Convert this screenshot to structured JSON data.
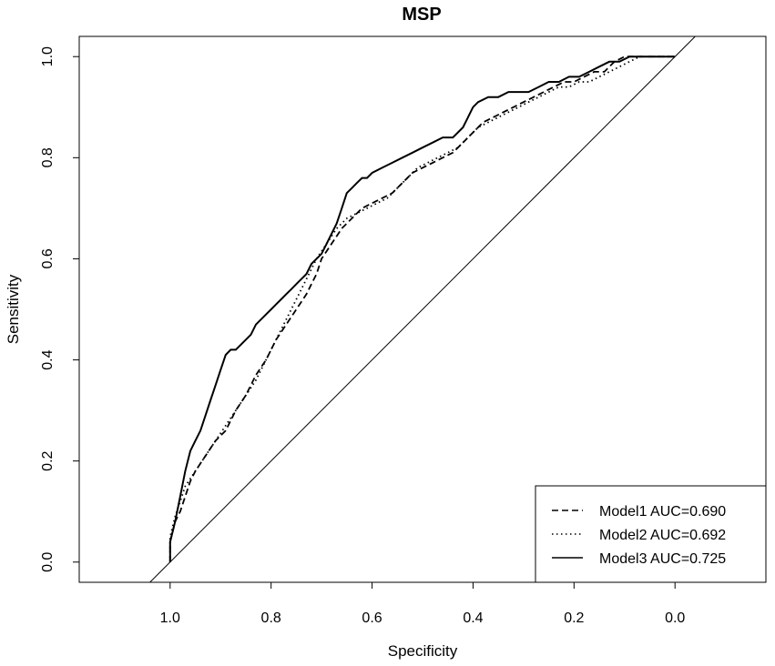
{
  "chart_data": {
    "type": "line",
    "title": "MSP",
    "xlabel": "Specificity",
    "ylabel": "Sensitivity",
    "xlim": [
      1.18,
      -0.18
    ],
    "ylim": [
      -0.04,
      1.04
    ],
    "x_reversed": true,
    "x_ticks": [
      "1.0",
      "0.8",
      "0.6",
      "0.4",
      "0.2",
      "0.0"
    ],
    "x_tick_values": [
      1.0,
      0.8,
      0.6,
      0.4,
      0.2,
      0.0
    ],
    "y_ticks": [
      "0.0",
      "0.2",
      "0.4",
      "0.6",
      "0.8",
      "1.0"
    ],
    "y_tick_values": [
      0.0,
      0.2,
      0.4,
      0.6,
      0.8,
      1.0
    ],
    "grid": false,
    "legend_position": "bottom-right",
    "reference_line": {
      "from": [
        1.0,
        0.0
      ],
      "to": [
        0.0,
        1.0
      ],
      "style": "solid"
    },
    "series": [
      {
        "name": "Model1 AUC=0.690",
        "linestyle": "dashed",
        "x": [
          1.0,
          1.0,
          0.99,
          0.98,
          0.97,
          0.96,
          0.95,
          0.93,
          0.91,
          0.89,
          0.87,
          0.85,
          0.83,
          0.81,
          0.79,
          0.77,
          0.75,
          0.73,
          0.72,
          0.71,
          0.7,
          0.68,
          0.66,
          0.64,
          0.62,
          0.6,
          0.58,
          0.56,
          0.54,
          0.52,
          0.5,
          0.48,
          0.46,
          0.44,
          0.42,
          0.4,
          0.38,
          0.36,
          0.34,
          0.32,
          0.3,
          0.28,
          0.26,
          0.24,
          0.22,
          0.2,
          0.18,
          0.16,
          0.14,
          0.13,
          0.12,
          0.1,
          0.08,
          0.06,
          0.04,
          0.02,
          0.0
        ],
        "y": [
          0.0,
          0.04,
          0.08,
          0.1,
          0.13,
          0.16,
          0.18,
          0.21,
          0.24,
          0.26,
          0.3,
          0.33,
          0.37,
          0.4,
          0.44,
          0.47,
          0.5,
          0.53,
          0.55,
          0.57,
          0.6,
          0.63,
          0.66,
          0.68,
          0.7,
          0.71,
          0.72,
          0.73,
          0.75,
          0.77,
          0.78,
          0.79,
          0.8,
          0.81,
          0.83,
          0.85,
          0.87,
          0.88,
          0.89,
          0.9,
          0.91,
          0.92,
          0.93,
          0.94,
          0.95,
          0.95,
          0.96,
          0.97,
          0.97,
          0.98,
          0.99,
          1.0,
          1.0,
          1.0,
          1.0,
          1.0,
          1.0
        ]
      },
      {
        "name": "Model2 AUC=0.692",
        "linestyle": "dotted",
        "x": [
          1.0,
          1.0,
          0.99,
          0.98,
          0.97,
          0.95,
          0.93,
          0.91,
          0.89,
          0.87,
          0.85,
          0.83,
          0.81,
          0.79,
          0.77,
          0.75,
          0.73,
          0.71,
          0.69,
          0.67,
          0.65,
          0.63,
          0.61,
          0.59,
          0.57,
          0.55,
          0.53,
          0.51,
          0.49,
          0.47,
          0.45,
          0.43,
          0.41,
          0.39,
          0.37,
          0.35,
          0.33,
          0.31,
          0.29,
          0.27,
          0.25,
          0.23,
          0.21,
          0.19,
          0.17,
          0.15,
          0.13,
          0.11,
          0.09,
          0.07,
          0.05,
          0.02,
          0.0
        ],
        "y": [
          0.0,
          0.05,
          0.09,
          0.12,
          0.15,
          0.18,
          0.21,
          0.24,
          0.27,
          0.3,
          0.33,
          0.36,
          0.4,
          0.44,
          0.48,
          0.52,
          0.56,
          0.6,
          0.63,
          0.66,
          0.68,
          0.69,
          0.7,
          0.71,
          0.72,
          0.74,
          0.76,
          0.78,
          0.79,
          0.8,
          0.81,
          0.82,
          0.84,
          0.86,
          0.87,
          0.88,
          0.89,
          0.9,
          0.91,
          0.92,
          0.93,
          0.94,
          0.94,
          0.95,
          0.95,
          0.96,
          0.97,
          0.98,
          0.99,
          1.0,
          1.0,
          1.0,
          1.0
        ]
      },
      {
        "name": "Model3 AUC=0.725",
        "linestyle": "solid",
        "x": [
          1.0,
          1.0,
          0.99,
          0.98,
          0.97,
          0.96,
          0.95,
          0.94,
          0.93,
          0.92,
          0.91,
          0.9,
          0.89,
          0.88,
          0.87,
          0.86,
          0.84,
          0.83,
          0.82,
          0.81,
          0.8,
          0.79,
          0.78,
          0.77,
          0.76,
          0.75,
          0.74,
          0.73,
          0.72,
          0.71,
          0.7,
          0.69,
          0.68,
          0.67,
          0.66,
          0.65,
          0.64,
          0.63,
          0.62,
          0.61,
          0.6,
          0.58,
          0.56,
          0.54,
          0.52,
          0.5,
          0.48,
          0.46,
          0.44,
          0.42,
          0.41,
          0.4,
          0.39,
          0.37,
          0.35,
          0.33,
          0.31,
          0.29,
          0.27,
          0.25,
          0.23,
          0.21,
          0.19,
          0.17,
          0.15,
          0.13,
          0.11,
          0.09,
          0.07,
          0.05,
          0.03,
          0.0
        ],
        "y": [
          0.0,
          0.04,
          0.08,
          0.13,
          0.18,
          0.22,
          0.24,
          0.26,
          0.29,
          0.32,
          0.35,
          0.38,
          0.41,
          0.42,
          0.42,
          0.43,
          0.45,
          0.47,
          0.48,
          0.49,
          0.5,
          0.51,
          0.52,
          0.53,
          0.54,
          0.55,
          0.56,
          0.57,
          0.59,
          0.6,
          0.61,
          0.63,
          0.65,
          0.67,
          0.7,
          0.73,
          0.74,
          0.75,
          0.76,
          0.76,
          0.77,
          0.78,
          0.79,
          0.8,
          0.81,
          0.82,
          0.83,
          0.84,
          0.84,
          0.86,
          0.88,
          0.9,
          0.91,
          0.92,
          0.92,
          0.93,
          0.93,
          0.93,
          0.94,
          0.95,
          0.95,
          0.96,
          0.96,
          0.97,
          0.98,
          0.99,
          0.99,
          1.0,
          1.0,
          1.0,
          1.0,
          1.0
        ]
      }
    ]
  }
}
